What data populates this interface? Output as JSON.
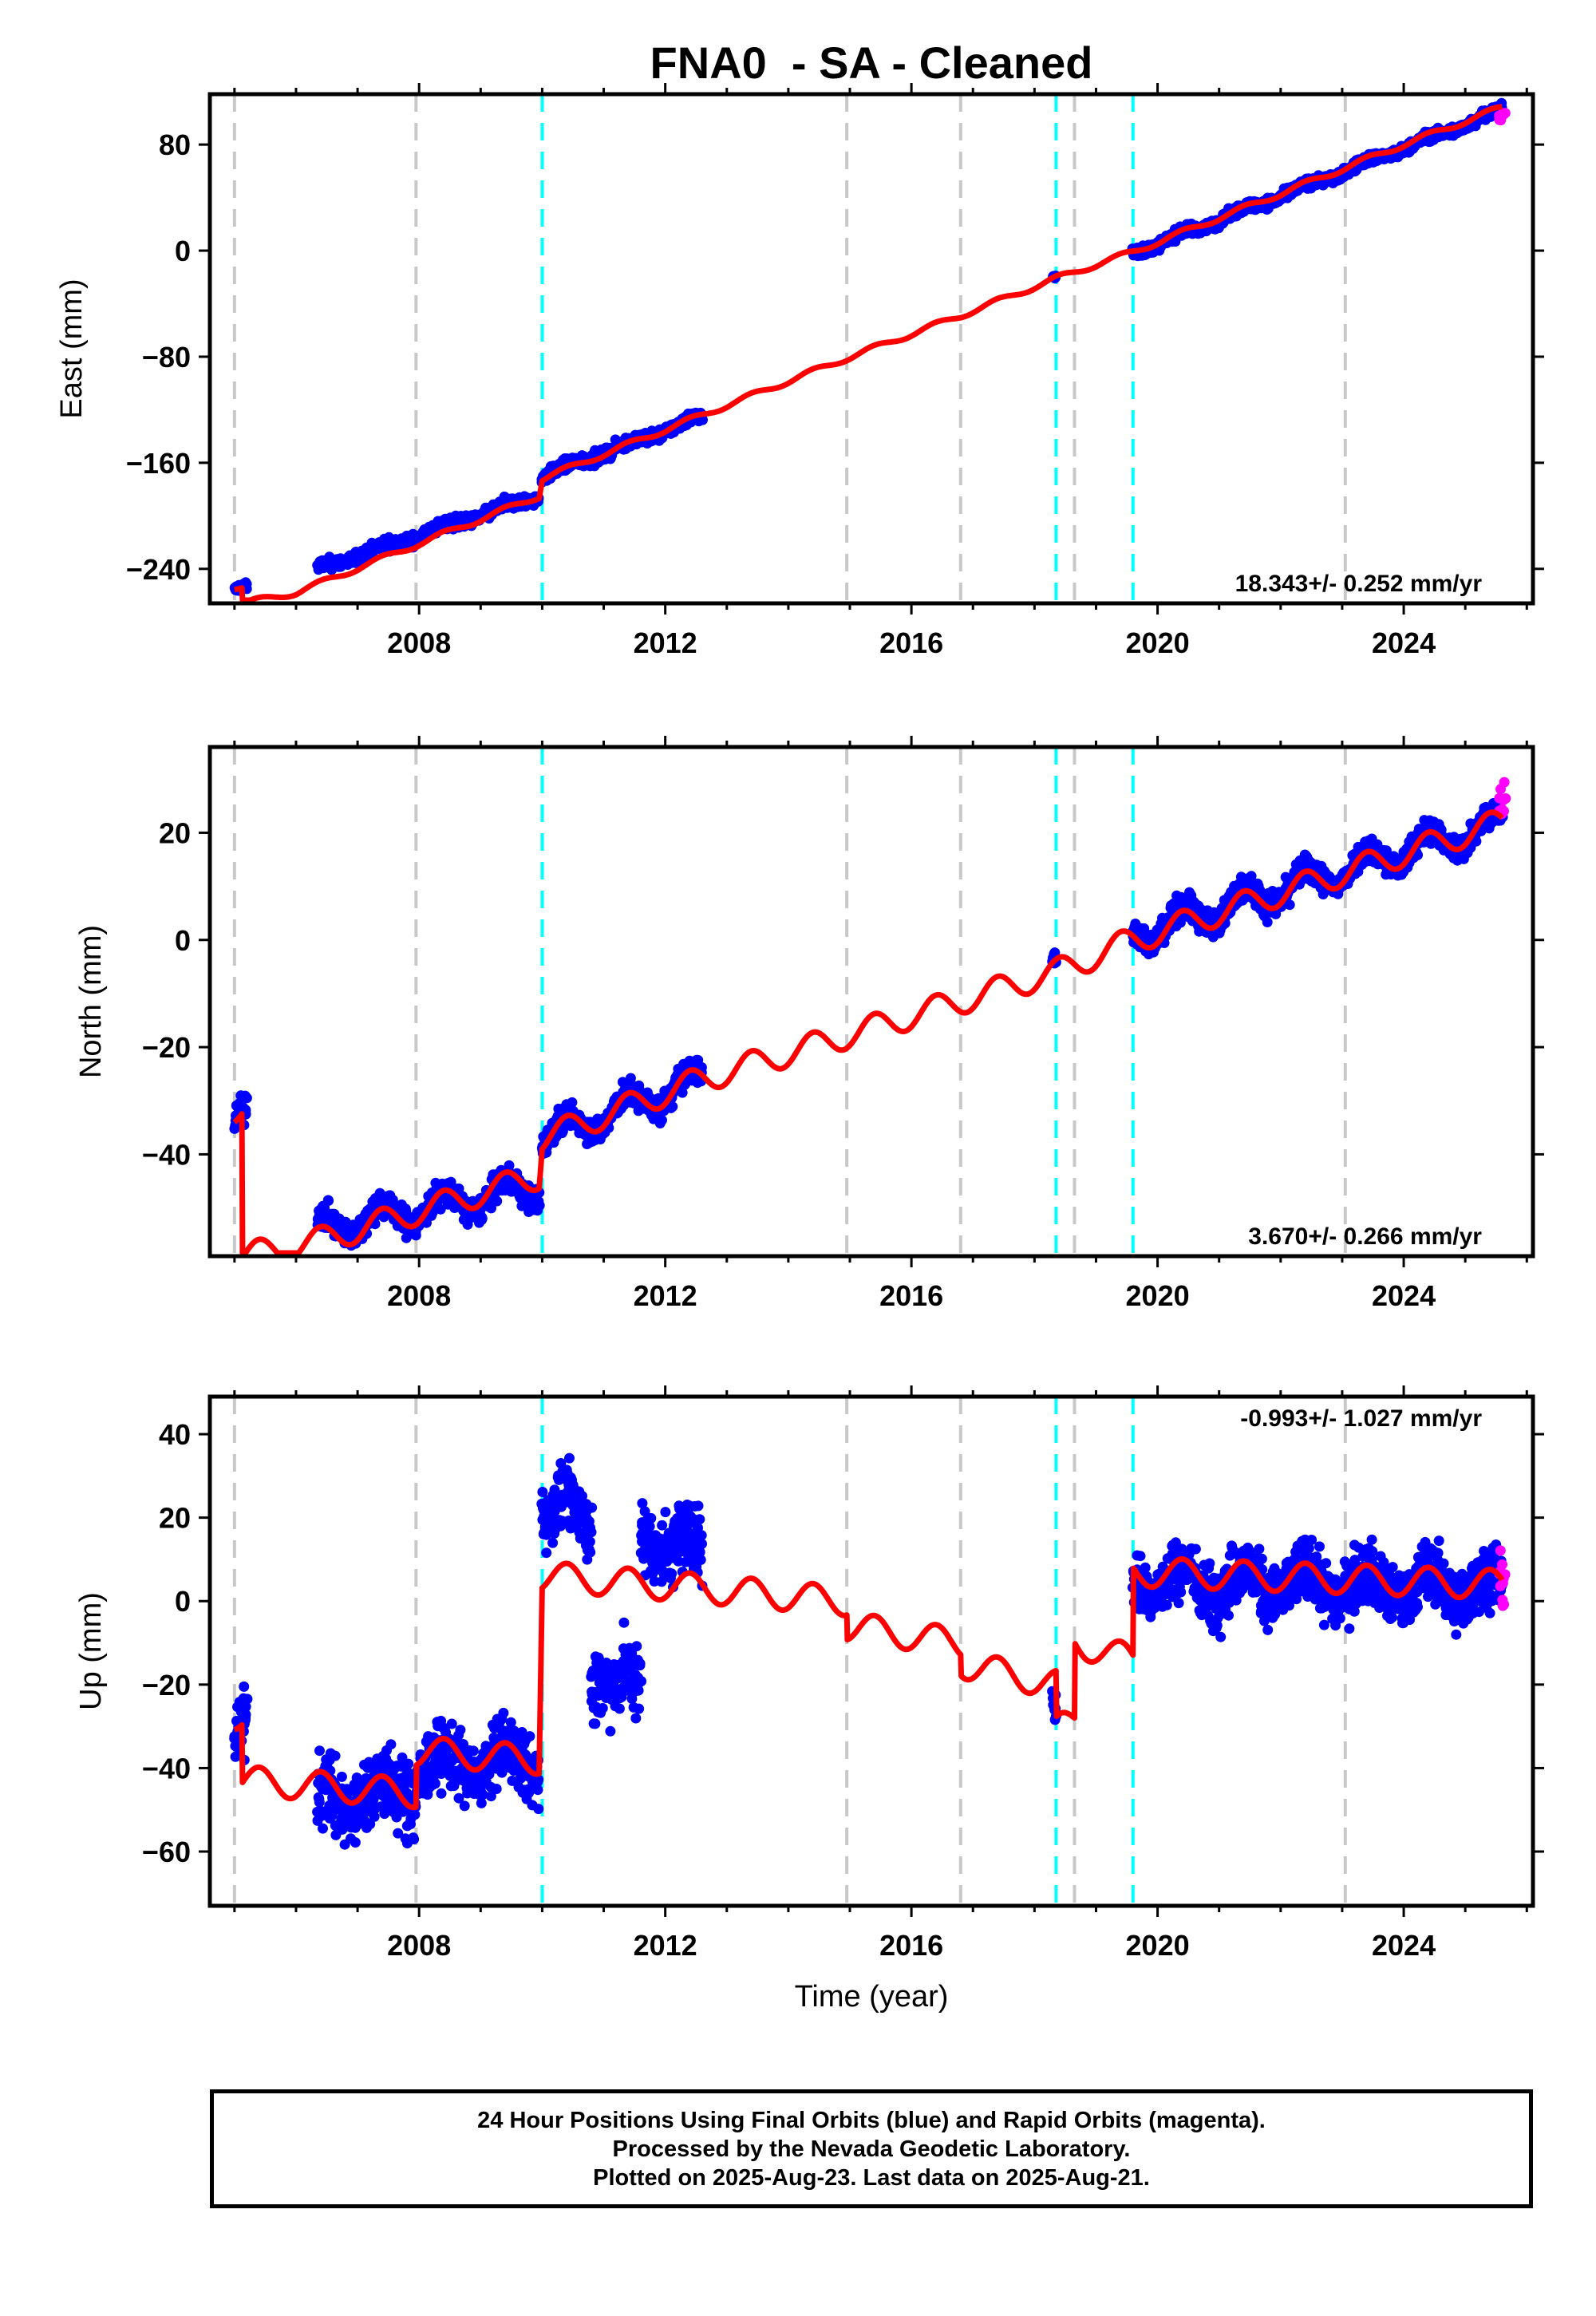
{
  "figure": {
    "title": "FNA0  - SA - Cleaned",
    "xlabel": "Time (year)",
    "colors": {
      "final_orbits": "#0000ff",
      "rapid_orbits": "#ff00ff",
      "model": "#ff0000",
      "equipment_change": "#c8c8c8",
      "earthquake": "#00ffff"
    }
  },
  "footer": {
    "line1": "24 Hour Positions Using Final Orbits (blue) and Rapid Orbits (magenta).",
    "line2": "Processed by the Nevada Geodetic Laboratory.",
    "line3": "Plotted on 2025-Aug-23. Last data on 2025-Aug-21."
  },
  "chart_data": [
    {
      "type": "scatter",
      "ylabel": "East (mm)",
      "rate_text": "18.343+/- 0.252 mm/yr",
      "rate_position": "bottom-right",
      "xlim": [
        2004.6,
        2026.1
      ],
      "ylim": [
        -266,
        118
      ],
      "xticks": [
        2008,
        2012,
        2016,
        2020,
        2024
      ],
      "yticks": [
        -240,
        -160,
        -80,
        0,
        80
      ],
      "grid": false,
      "gray_dashed_lines": [
        2005.0,
        2007.95,
        2014.95,
        2016.8,
        2018.65,
        2023.05
      ],
      "cyan_dashed_lines": [
        2010.0,
        2018.35,
        2019.6
      ],
      "rate_mm_per_yr": 18.343,
      "data_ranges": [
        {
          "start": 2005.0,
          "end": 2005.2,
          "at_start": -254,
          "at_end": -252,
          "scatter": 2.5
        },
        {
          "start": 2006.35,
          "end": 2009.95,
          "at_start": -240,
          "at_end": -185,
          "scatter": 4
        },
        {
          "start": 2010.0,
          "end": 2012.6,
          "at_start": -170,
          "at_end": -125,
          "scatter": 4
        },
        {
          "start": 2018.3,
          "end": 2018.35,
          "at_start": -22,
          "at_end": -22,
          "scatter": 2
        },
        {
          "start": 2019.6,
          "end": 2025.6,
          "at_start": -2,
          "at_end": 106,
          "scatter": 3.5
        }
      ],
      "rapid_range": {
        "start": 2025.55,
        "end": 2025.65,
        "at_start": 100,
        "at_end": 104,
        "scatter": 3
      },
      "model_line": [
        [
          2005.0,
          -254
        ],
        [
          2005.12,
          -254
        ],
        [
          2005.13,
          -266
        ],
        [
          2006.0,
          -258
        ],
        [
          2008.0,
          -221
        ],
        [
          2009.95,
          -185
        ],
        [
          2010.0,
          -172
        ],
        [
          2012.6,
          -124
        ],
        [
          2014.9,
          -82
        ],
        [
          2016.8,
          -49
        ],
        [
          2018.35,
          -21
        ],
        [
          2019.6,
          -1
        ],
        [
          2022.0,
          43
        ],
        [
          2024.0,
          80
        ],
        [
          2025.6,
          108
        ]
      ],
      "model_seasonal_amplitude": 2.0
    },
    {
      "type": "scatter",
      "ylabel": "North (mm)",
      "rate_text": "3.670+/- 0.266 mm/yr",
      "rate_position": "bottom-right",
      "xlim": [
        2004.6,
        2026.1
      ],
      "ylim": [
        -59,
        36
      ],
      "xticks": [
        2008,
        2012,
        2016,
        2020,
        2024
      ],
      "yticks": [
        -40,
        -20,
        0,
        20
      ],
      "grid": false,
      "gray_dashed_lines": [
        2005.0,
        2007.95,
        2014.95,
        2016.8,
        2018.65,
        2023.05
      ],
      "cyan_dashed_lines": [
        2010.0,
        2018.35,
        2019.6
      ],
      "rate_mm_per_yr": 3.67,
      "data_ranges": [
        {
          "start": 2005.0,
          "end": 2005.2,
          "at_start": -32,
          "at_end": -31,
          "scatter": 2.5
        },
        {
          "start": 2006.35,
          "end": 2009.95,
          "at_start": -54,
          "at_end": -46,
          "scatter": 2.2
        },
        {
          "start": 2010.0,
          "end": 2012.6,
          "at_start": -37,
          "at_end": -26,
          "scatter": 2.2
        },
        {
          "start": 2018.3,
          "end": 2018.35,
          "at_start": -6,
          "at_end": -6,
          "scatter": 1.5
        },
        {
          "start": 2019.6,
          "end": 2025.6,
          "at_start": 1,
          "at_end": 22,
          "scatter": 2.2
        }
      ],
      "rapid_range": {
        "start": 2025.55,
        "end": 2025.65,
        "at_start": 23,
        "at_end": 27,
        "scatter": 3
      },
      "model_line": [
        [
          2005.0,
          -32
        ],
        [
          2005.12,
          -32
        ],
        [
          2005.13,
          -59
        ],
        [
          2006.4,
          -56
        ],
        [
          2009.95,
          -44
        ],
        [
          2010.0,
          -37
        ],
        [
          2012.6,
          -26
        ],
        [
          2018.35,
          -6
        ],
        [
          2019.6,
          0
        ],
        [
          2025.6,
          22
        ]
      ],
      "model_seasonal_amplitude": 2.5
    },
    {
      "type": "scatter",
      "ylabel": "Up (mm)",
      "rate_text": "-0.993+/- 1.027 mm/yr",
      "rate_position": "top-right",
      "xlim": [
        2004.6,
        2026.1
      ],
      "ylim": [
        -73,
        49
      ],
      "xticks": [
        2008,
        2012,
        2016,
        2020,
        2024
      ],
      "yticks": [
        -60,
        -40,
        -20,
        0,
        20,
        40
      ],
      "grid": false,
      "gray_dashed_lines": [
        2005.0,
        2007.95,
        2014.95,
        2016.8,
        2018.65,
        2023.05
      ],
      "cyan_dashed_lines": [
        2010.0,
        2018.35,
        2019.6
      ],
      "rate_mm_per_yr": -0.993,
      "data_ranges": [
        {
          "start": 2005.0,
          "end": 2005.2,
          "at_start": -30,
          "at_end": -28,
          "scatter": 7
        },
        {
          "start": 2006.35,
          "end": 2007.95,
          "at_start": -48,
          "at_end": -45,
          "scatter": 8
        },
        {
          "start": 2007.95,
          "end": 2009.95,
          "at_start": -40,
          "at_end": -38,
          "scatter": 7
        },
        {
          "start": 2010.0,
          "end": 2010.8,
          "at_start": 22,
          "at_end": 20,
          "scatter": 7
        },
        {
          "start": 2010.8,
          "end": 2011.6,
          "at_start": -16,
          "at_end": -22,
          "scatter": 8
        },
        {
          "start": 2011.6,
          "end": 2012.6,
          "at_start": 16,
          "at_end": 12,
          "scatter": 8
        },
        {
          "start": 2018.3,
          "end": 2018.35,
          "at_start": -28,
          "at_end": -28,
          "scatter": 4
        },
        {
          "start": 2019.6,
          "end": 2025.6,
          "at_start": 5,
          "at_end": 3,
          "scatter": 6.5
        }
      ],
      "rapid_range": {
        "start": 2025.55,
        "end": 2025.65,
        "at_start": 3,
        "at_end": 5,
        "scatter": 8
      },
      "model_line": [
        [
          2005.0,
          -28
        ],
        [
          2005.12,
          -29
        ],
        [
          2005.13,
          -43
        ],
        [
          2007.95,
          -46
        ],
        [
          2007.96,
          -36
        ],
        [
          2009.95,
          -38
        ],
        [
          2010.0,
          6
        ],
        [
          2012.6,
          3
        ],
        [
          2014.95,
          0
        ],
        [
          2014.96,
          -6
        ],
        [
          2016.8,
          -10
        ],
        [
          2016.81,
          -15
        ],
        [
          2018.35,
          -20
        ],
        [
          2018.36,
          -31
        ],
        [
          2018.65,
          -28
        ],
        [
          2018.66,
          -10
        ],
        [
          2019.6,
          -14
        ],
        [
          2019.61,
          7
        ],
        [
          2025.6,
          4
        ]
      ],
      "model_seasonal_amplitude": 3.5
    }
  ]
}
